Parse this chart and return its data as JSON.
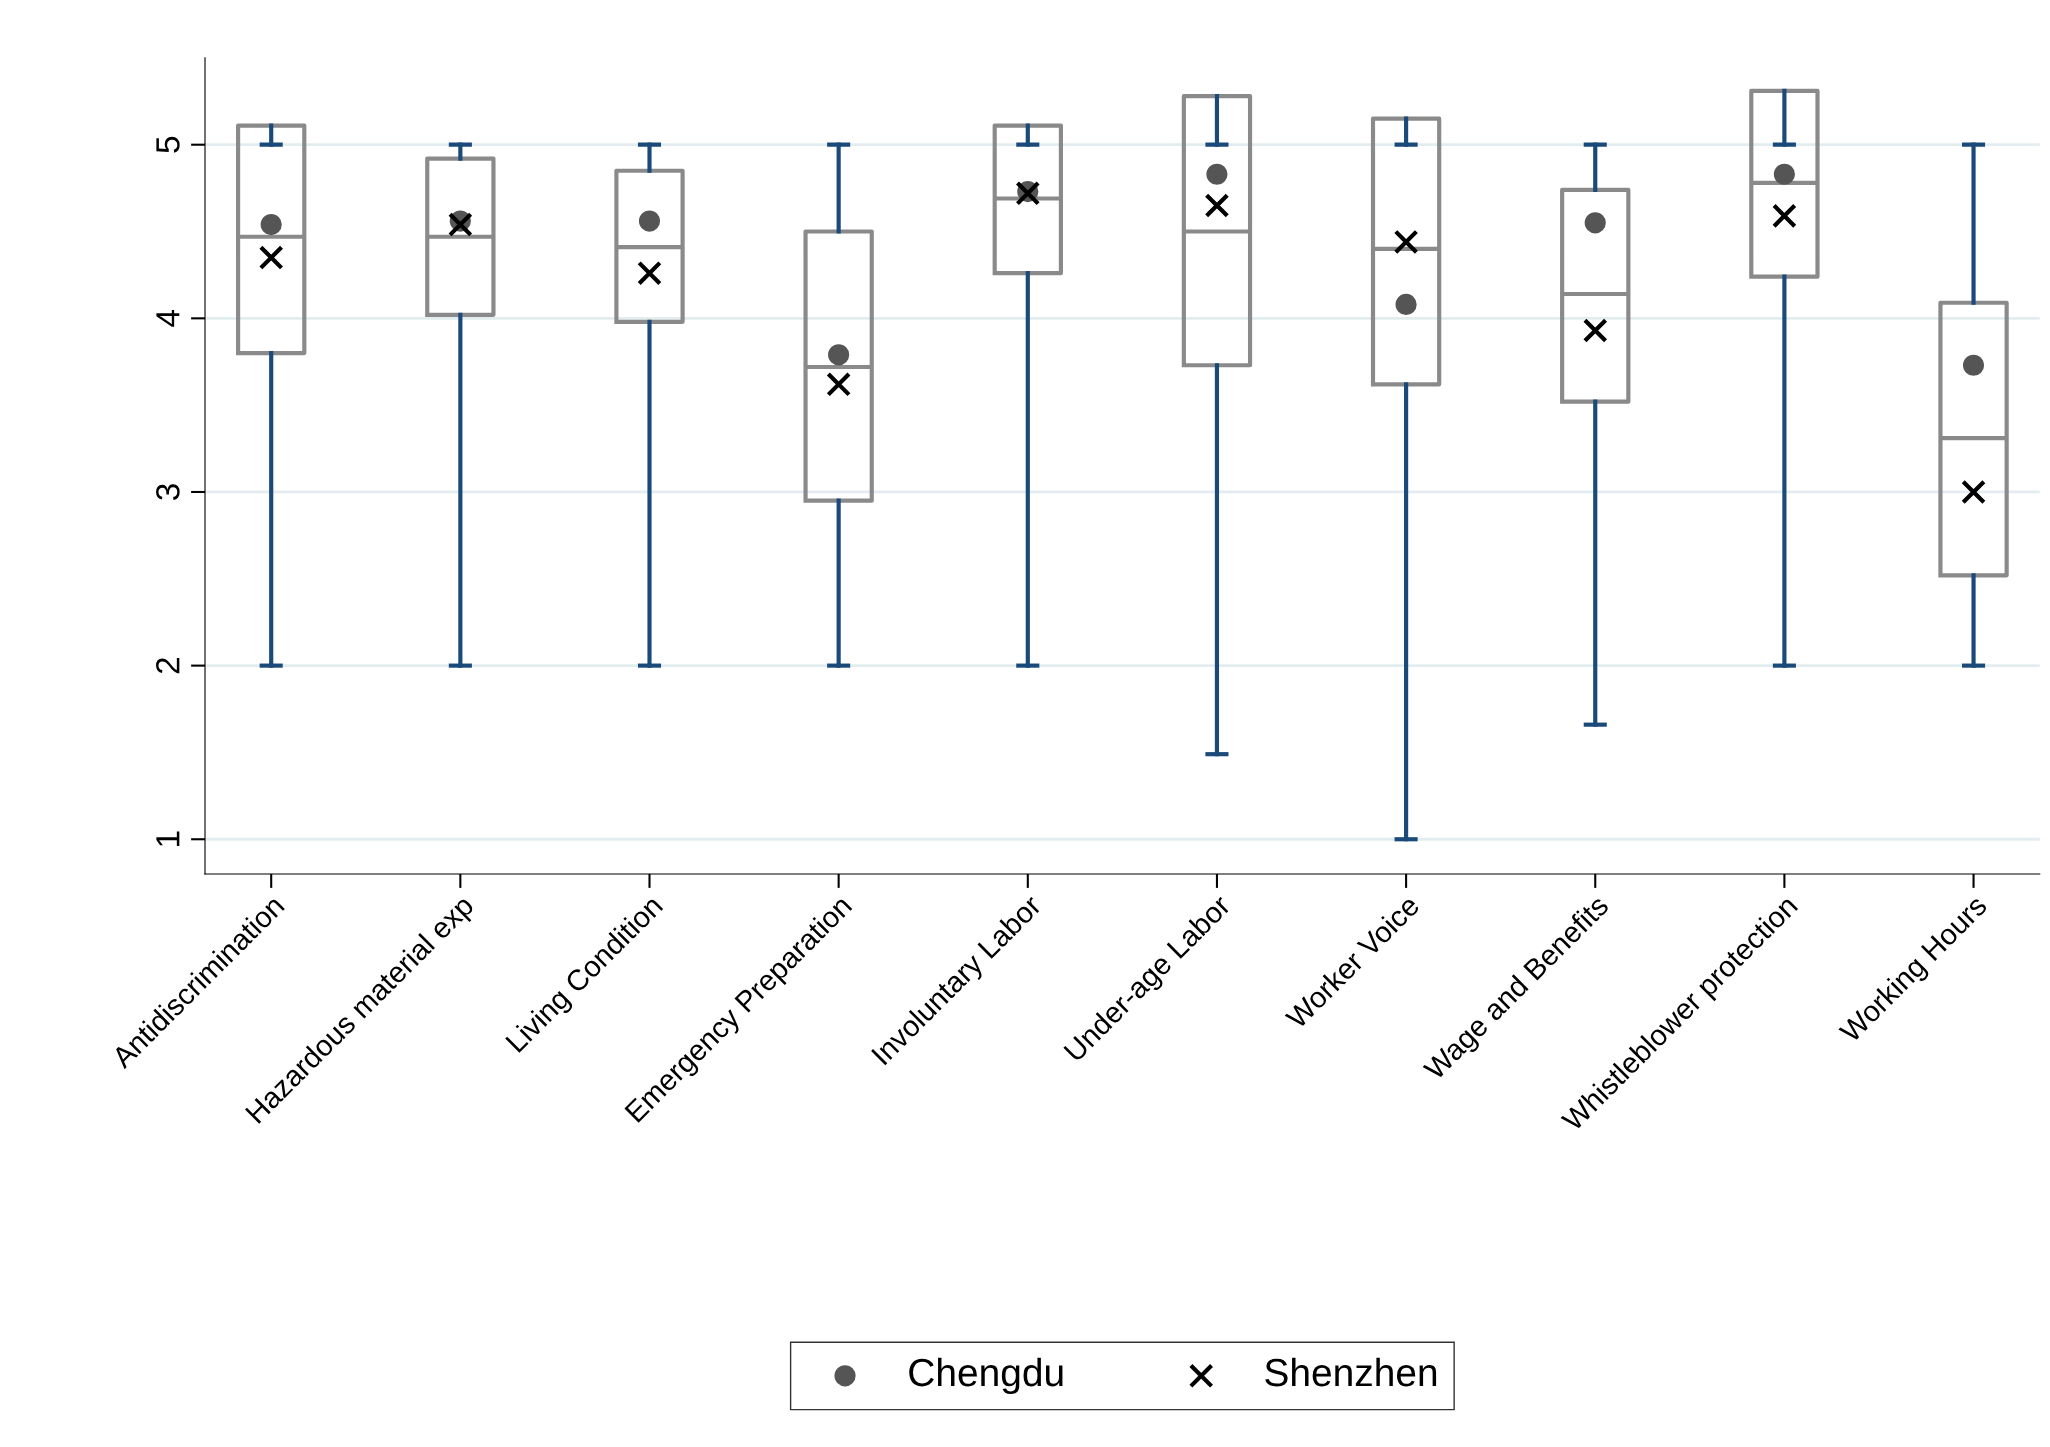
{
  "chart_data": {
    "type": "box",
    "categories": [
      "Antidiscrimination",
      "Hazardous material exp",
      "Living Condition",
      "Emergency Preparation",
      "Involuntary Labor",
      "Under-age Labor",
      "Worker Voice",
      "Wage and Benefits",
      "Whistleblower protection",
      "Working Hours"
    ],
    "boxes": [
      {
        "low": 2,
        "q1": 3.8,
        "median": 4.47,
        "q3": 5.11,
        "high": 5
      },
      {
        "low": 2,
        "q1": 4.02,
        "median": 4.47,
        "q3": 4.92,
        "high": 5
      },
      {
        "low": 2,
        "q1": 3.98,
        "median": 4.41,
        "q3": 4.85,
        "high": 5
      },
      {
        "low": 2,
        "q1": 2.95,
        "median": 3.72,
        "q3": 4.5,
        "high": 5
      },
      {
        "low": 2,
        "q1": 4.26,
        "median": 4.69,
        "q3": 5.11,
        "high": 5
      },
      {
        "low": 1.49,
        "q1": 3.73,
        "median": 4.5,
        "q3": 5.28,
        "high": 5
      },
      {
        "low": 1,
        "q1": 3.62,
        "median": 4.4,
        "q3": 5.15,
        "high": 5
      },
      {
        "low": 1.66,
        "q1": 3.52,
        "median": 4.14,
        "q3": 4.74,
        "high": 5
      },
      {
        "low": 2,
        "q1": 4.24,
        "median": 4.78,
        "q3": 5.31,
        "high": 5
      },
      {
        "low": 2,
        "q1": 2.52,
        "median": 3.31,
        "q3": 4.09,
        "high": 5
      }
    ],
    "color": "#8a8a8a",
    "series": [
      {
        "name": "Chengdu",
        "type": "scatter",
        "marker": "circle",
        "color": "#555555",
        "x": [
          "Antidiscrimination",
          "Hazardous material exp",
          "Living Condition",
          "Emergency Preparation",
          "Involuntary Labor",
          "Under-age Labor",
          "Worker Voice",
          "Wage and Benefits",
          "Whistleblower protection",
          "Working Hours"
        ],
        "values": [
          4.54,
          4.56,
          4.56,
          3.79,
          4.73,
          4.83,
          4.08,
          4.55,
          4.83,
          3.73
        ]
      },
      {
        "name": "Shenzhen",
        "type": "scatter",
        "marker": "cross",
        "color": "#000000",
        "x": [
          "Antidiscrimination",
          "Hazardous material exp",
          "Living Condition",
          "Emergency Preparation",
          "Involuntary Labor",
          "Under-age Labor",
          "Worker Voice",
          "Wage and Benefits",
          "Whistleblower protection",
          "Working Hours"
        ],
        "values": [
          4.35,
          4.54,
          4.26,
          3.62,
          4.72,
          4.65,
          4.44,
          3.93,
          4.59,
          3.0
        ]
      }
    ],
    "ylim": [
      0.8,
      5.5
    ],
    "yticks": [
      1,
      2,
      3,
      4,
      5
    ],
    "grid": "y",
    "legend": "bottom"
  }
}
